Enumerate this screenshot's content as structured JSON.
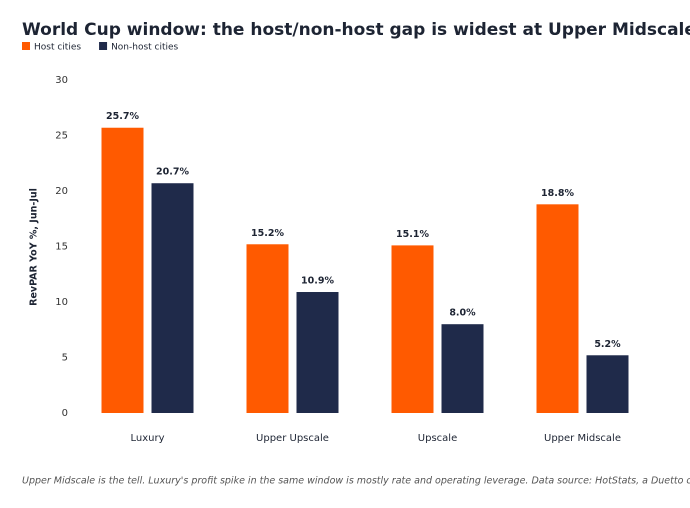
{
  "chart_data": {
    "type": "bar",
    "title": "World Cup window: the host/non-host gap is widest at Upper Midscale",
    "y_label": "RevPAR YoY %, Jun-Jul",
    "footnote": "Upper Midscale is the tell. Luxury's profit spike in the same window is mostly rate and operating leverage. Data source: HotStats, a Duetto company.",
    "categories": [
      "Luxury",
      "Upper Upscale",
      "Upscale",
      "Upper Midscale"
    ],
    "series": [
      {
        "name": "Host cities",
        "color": "#ff5a00",
        "values": [
          25.7,
          15.2,
          15.1,
          18.8
        ],
        "value_labels": [
          "25.7%",
          "15.2%",
          "15.1%",
          "18.8%"
        ]
      },
      {
        "name": "Non-host cities",
        "color": "#1f2a4a",
        "values": [
          20.7,
          10.9,
          8.0,
          5.2
        ],
        "value_labels": [
          "20.7%",
          "10.9%",
          "8.0%",
          "5.2%"
        ]
      }
    ],
    "ylim": [
      0,
      30
    ],
    "yticks": [
      0,
      5,
      10,
      15,
      20,
      25,
      30
    ],
    "grid": false,
    "legend": "top-left"
  }
}
